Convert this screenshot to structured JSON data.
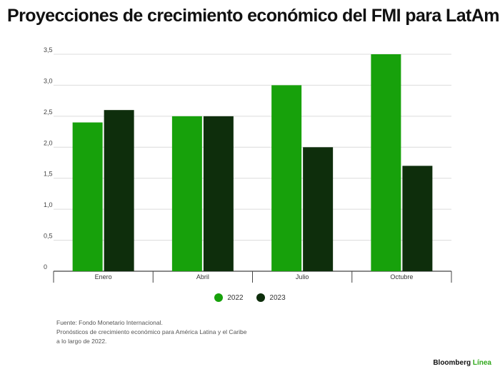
{
  "title": "Proyecciones de crecimiento económico del FMI para LatAm",
  "colors": {
    "s2022": "#17a10b",
    "s2023": "#0e2e0c",
    "grid": "#dcdcdc",
    "axis": "#444444"
  },
  "chart_data": {
    "type": "bar",
    "categories": [
      "Enero",
      "Abril",
      "Julio",
      "Octubre"
    ],
    "series": [
      {
        "name": "2022",
        "values": [
          2.4,
          2.5,
          3.0,
          3.5
        ]
      },
      {
        "name": "2023",
        "values": [
          2.6,
          2.5,
          2.0,
          1.7
        ]
      }
    ],
    "ylim": [
      0,
      3.5
    ],
    "yticks": [
      "0",
      "0,5",
      "1,0",
      "1,5",
      "2,0",
      "2,5",
      "3,0",
      "3,5"
    ],
    "grid": true,
    "legend": "bottom-center"
  },
  "notes": [
    "Fuente: Fondo Monetario Internacional.",
    "Pronósticos de crecimiento económico para América Latina y el Caribe",
    "a lo largo de 2022."
  ],
  "brand": {
    "name": "Bloomberg",
    "accent": "Línea"
  }
}
